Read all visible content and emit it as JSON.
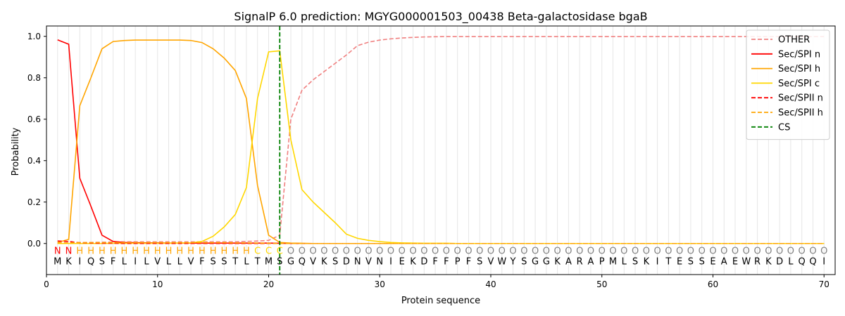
{
  "chart_data": {
    "type": "line",
    "title": "SignalP 6.0 prediction: MGYG000001503_00438 Beta-galactosidase bgaB",
    "xlabel": "Protein sequence",
    "ylabel": "Probability",
    "xlim": [
      0,
      71
    ],
    "ylim": [
      -0.15,
      1.05
    ],
    "xticks": [
      0,
      10,
      20,
      30,
      40,
      50,
      60,
      70
    ],
    "yticks": [
      0.0,
      0.2,
      0.4,
      0.6,
      0.8,
      1.0
    ],
    "vertical_grid": "light gray lines at every residue position 1-70",
    "legend_position": "top-right",
    "sequence": [
      "M",
      "K",
      "I",
      "Q",
      "S",
      "F",
      "L",
      "I",
      "L",
      "V",
      "L",
      "L",
      "V",
      "F",
      "S",
      "S",
      "T",
      "L",
      "T",
      "M",
      "S",
      "G",
      "Q",
      "V",
      "K",
      "S",
      "D",
      "N",
      "V",
      "N",
      "I",
      "E",
      "K",
      "D",
      "F",
      "F",
      "P",
      "F",
      "S",
      "V",
      "W",
      "Y",
      "S",
      "G",
      "G",
      "K",
      "A",
      "R",
      "A",
      "P",
      "M",
      "L",
      "S",
      "K",
      "I",
      "T",
      "E",
      "S",
      "S",
      "E",
      "A",
      "E",
      "W",
      "R",
      "K",
      "D",
      "L",
      "Q",
      "Q",
      "I"
    ],
    "region_labels": [
      "N",
      "N",
      "H",
      "H",
      "H",
      "H",
      "H",
      "H",
      "H",
      "H",
      "H",
      "H",
      "H",
      "H",
      "H",
      "H",
      "H",
      "H",
      "C",
      "C",
      "C",
      "O",
      "O",
      "O",
      "O",
      "O",
      "O",
      "O",
      "O",
      "O",
      "O",
      "O",
      "O",
      "O",
      "O",
      "O",
      "O",
      "O",
      "O",
      "O",
      "O",
      "O",
      "O",
      "O",
      "O",
      "O",
      "O",
      "O",
      "O",
      "O",
      "O",
      "O",
      "O",
      "O",
      "O",
      "O",
      "O",
      "O",
      "O",
      "O",
      "O",
      "O",
      "O",
      "O",
      "O",
      "O",
      "O",
      "O",
      "O",
      "O"
    ],
    "region_label_colors": {
      "N": "#ff0000",
      "H": "#ffa500",
      "C": "#ffd700",
      "O": "#808080"
    },
    "cleavage_site": 21,
    "series": [
      {
        "name": "OTHER",
        "color": "#f08080",
        "dash": "dashed",
        "values": [
          0.0,
          0.0,
          0.005,
          0.005,
          0.006,
          0.007,
          0.008,
          0.008,
          0.008,
          0.008,
          0.008,
          0.008,
          0.008,
          0.008,
          0.008,
          0.008,
          0.008,
          0.01,
          0.012,
          0.015,
          0.04,
          0.6,
          0.74,
          0.79,
          0.83,
          0.87,
          0.91,
          0.955,
          0.972,
          0.982,
          0.988,
          0.992,
          0.995,
          0.997,
          0.998,
          0.999,
          0.999,
          0.999,
          0.999,
          0.999,
          0.999,
          0.999,
          0.999,
          0.999,
          0.999,
          0.999,
          0.999,
          0.999,
          0.999,
          0.999,
          0.999,
          0.999,
          0.999,
          0.999,
          0.999,
          0.999,
          0.999,
          0.999,
          0.999,
          0.999,
          0.999,
          0.999,
          0.999,
          0.999,
          0.999,
          0.999,
          0.999,
          0.999,
          0.999,
          0.999
        ]
      },
      {
        "name": "Sec/SPI n",
        "color": "#ff0000",
        "dash": "solid",
        "values": [
          0.983,
          0.962,
          0.315,
          0.18,
          0.04,
          0.01,
          0.005,
          0.004,
          0.003,
          0.003,
          0.002,
          0.002,
          0.002,
          0.002,
          0.002,
          0.002,
          0.002,
          0.002,
          0.002,
          0.002,
          0.001,
          0.0,
          0.0,
          0.0,
          0.0,
          0.0,
          0.0,
          0.0,
          0.0,
          0.0,
          0.0,
          0.0,
          0.0,
          0.0,
          0.0,
          0.0,
          0.0,
          0.0,
          0.0,
          0.0,
          0.0,
          0.0,
          0.0,
          0.0,
          0.0,
          0.0,
          0.0,
          0.0,
          0.0,
          0.0,
          0.0,
          0.0,
          0.0,
          0.0,
          0.0,
          0.0,
          0.0,
          0.0,
          0.0,
          0.0,
          0.0,
          0.0,
          0.0,
          0.0,
          0.0,
          0.0,
          0.0,
          0.0,
          0.0,
          0.0
        ]
      },
      {
        "name": "Sec/SPI h",
        "color": "#ffa500",
        "dash": "solid",
        "values": [
          0.005,
          0.02,
          0.665,
          0.8,
          0.94,
          0.975,
          0.98,
          0.982,
          0.982,
          0.982,
          0.982,
          0.982,
          0.98,
          0.97,
          0.94,
          0.895,
          0.835,
          0.7,
          0.28,
          0.04,
          0.005,
          0.002,
          0.001,
          0.0,
          0.0,
          0.0,
          0.0,
          0.0,
          0.0,
          0.0,
          0.0,
          0.0,
          0.0,
          0.0,
          0.0,
          0.0,
          0.0,
          0.0,
          0.0,
          0.0,
          0.0,
          0.0,
          0.0,
          0.0,
          0.0,
          0.0,
          0.0,
          0.0,
          0.0,
          0.0,
          0.0,
          0.0,
          0.0,
          0.0,
          0.0,
          0.0,
          0.0,
          0.0,
          0.0,
          0.0,
          0.0,
          0.0,
          0.0,
          0.0,
          0.0,
          0.0,
          0.0,
          0.0,
          0.0,
          0.0
        ]
      },
      {
        "name": "Sec/SPI c",
        "color": "#ffd700",
        "dash": "solid",
        "values": [
          0.0,
          0.0,
          0.0,
          0.0,
          0.0,
          0.001,
          0.001,
          0.001,
          0.001,
          0.001,
          0.001,
          0.002,
          0.003,
          0.01,
          0.035,
          0.08,
          0.14,
          0.27,
          0.7,
          0.925,
          0.93,
          0.5,
          0.26,
          0.2,
          0.15,
          0.1,
          0.045,
          0.025,
          0.015,
          0.009,
          0.005,
          0.003,
          0.002,
          0.001,
          0.001,
          0.001,
          0.0,
          0.0,
          0.0,
          0.0,
          0.0,
          0.0,
          0.0,
          0.0,
          0.0,
          0.0,
          0.0,
          0.0,
          0.0,
          0.0,
          0.0,
          0.0,
          0.0,
          0.0,
          0.0,
          0.0,
          0.0,
          0.0,
          0.0,
          0.0,
          0.0,
          0.0,
          0.0,
          0.0,
          0.0,
          0.0,
          0.0,
          0.0,
          0.0,
          0.0
        ]
      },
      {
        "name": "Sec/SPII n",
        "color": "#ff0000",
        "dash": "dashed",
        "values": [
          0.012,
          0.01,
          0.003,
          0.002,
          0.001,
          0.001,
          0.0,
          0.0,
          0.0,
          0.0,
          0.0,
          0.0,
          0.0,
          0.0,
          0.0,
          0.0,
          0.0,
          0.0,
          0.0,
          0.0,
          0.0,
          0.0,
          0.0,
          0.0,
          0.0,
          0.0,
          0.0,
          0.0,
          0.0,
          0.0,
          0.0,
          0.0,
          0.0,
          0.0,
          0.0,
          0.0,
          0.0,
          0.0,
          0.0,
          0.0,
          0.0,
          0.0,
          0.0,
          0.0,
          0.0,
          0.0,
          0.0,
          0.0,
          0.0,
          0.0,
          0.0,
          0.0,
          0.0,
          0.0,
          0.0,
          0.0,
          0.0,
          0.0,
          0.0,
          0.0,
          0.0,
          0.0,
          0.0,
          0.0,
          0.0,
          0.0,
          0.0,
          0.0,
          0.0,
          0.0
        ]
      },
      {
        "name": "Sec/SPII h",
        "color": "#ffa500",
        "dash": "dashed",
        "values": [
          0.003,
          0.003,
          0.004,
          0.004,
          0.004,
          0.004,
          0.004,
          0.004,
          0.004,
          0.004,
          0.004,
          0.004,
          0.004,
          0.004,
          0.004,
          0.004,
          0.003,
          0.003,
          0.002,
          0.001,
          0.0,
          0.0,
          0.0,
          0.0,
          0.0,
          0.0,
          0.0,
          0.0,
          0.0,
          0.0,
          0.0,
          0.0,
          0.0,
          0.0,
          0.0,
          0.0,
          0.0,
          0.0,
          0.0,
          0.0,
          0.0,
          0.0,
          0.0,
          0.0,
          0.0,
          0.0,
          0.0,
          0.0,
          0.0,
          0.0,
          0.0,
          0.0,
          0.0,
          0.0,
          0.0,
          0.0,
          0.0,
          0.0,
          0.0,
          0.0,
          0.0,
          0.0,
          0.0,
          0.0,
          0.0,
          0.0,
          0.0,
          0.0,
          0.0,
          0.0
        ]
      }
    ],
    "cs_series": {
      "name": "CS",
      "color": "#008000",
      "dash": "dashed"
    }
  }
}
